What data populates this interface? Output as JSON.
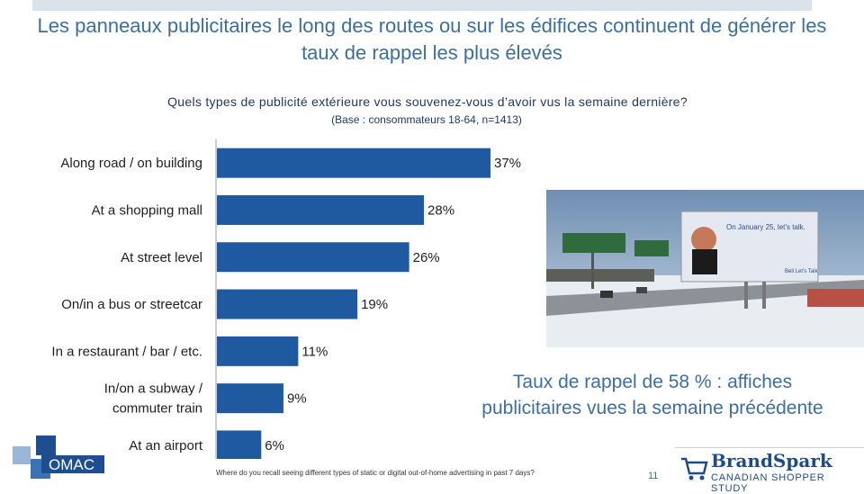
{
  "header": {
    "title": "Les panneaux publicitaires le long des routes ou sur les édifices continuent de générer les taux de rappel les plus élevés",
    "question": "Quels types de publicité extérieure vous souvenez-vous d’avoir vus la semaine dernière?",
    "base": "(Base : consommateurs 18-64, n=1413)"
  },
  "chart_data": {
    "type": "bar",
    "orientation": "horizontal",
    "categories": [
      "Along road / on building",
      "At a shopping mall",
      "At street level",
      "On/in a bus or streetcar",
      "In a restaurant / bar / etc.",
      "In/on a subway / commuter train",
      "At an airport"
    ],
    "category_lines": [
      [
        "Along road / on building"
      ],
      [
        "At a shopping mall"
      ],
      [
        "At street level"
      ],
      [
        "On/in a bus or streetcar"
      ],
      [
        "In a restaurant / bar / etc."
      ],
      [
        "In/on a subway /",
        "commuter train"
      ],
      [
        "At an airport"
      ]
    ],
    "values": [
      37,
      28,
      26,
      19,
      11,
      9,
      6
    ],
    "value_labels": [
      "37%",
      "28%",
      "26%",
      "19%",
      "11%",
      "9%",
      "6%"
    ],
    "unit": "%",
    "xlim": [
      0,
      40
    ],
    "bar_color": "#1f5aa0",
    "title": "",
    "xlabel": "",
    "ylabel": "",
    "grid": false
  },
  "photo": {
    "billboard_text": "On January 25, let’s talk.",
    "brand_text": "Bell Let’s Talk"
  },
  "callout": {
    "text": "Taux de rappel de 58 % : affiches publicitaires vues la semaine précédente"
  },
  "footer": {
    "footnote": "Where do you recall seeing different types of static or digital out-of-home advertising in past 7 days?",
    "page_number": "11",
    "omac_logo": "OMAC",
    "brandspark_name": "BrandSpark",
    "brandspark_sub": "CANADIAN SHOPPER STUDY"
  }
}
